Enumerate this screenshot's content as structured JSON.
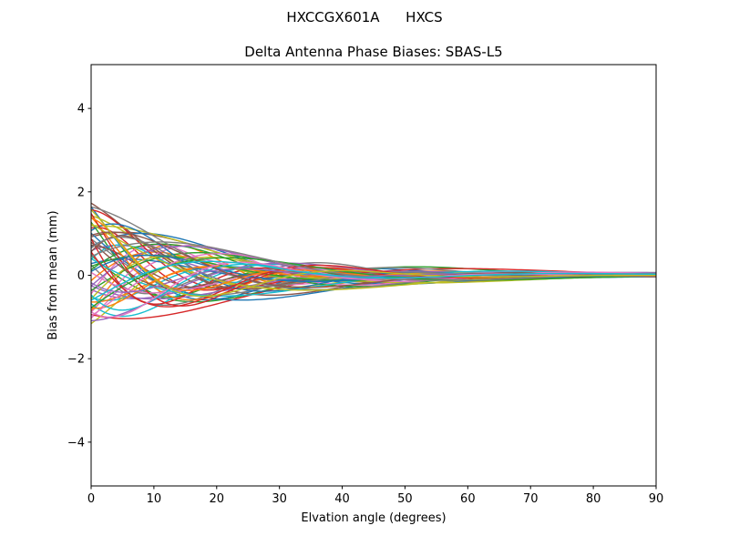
{
  "chart_data": {
    "type": "line",
    "suptitle": "HXCCGX601A      HXCS",
    "title": "Delta Antenna Phase Biases: SBAS-L5",
    "xlabel": "Elvation angle (degrees)",
    "ylabel": "Bias from mean (mm)",
    "xlim": [
      0,
      90
    ],
    "ylim": [
      -5.05,
      5.05
    ],
    "x_ticks": [
      0,
      10,
      20,
      30,
      40,
      50,
      60,
      70,
      80,
      90
    ],
    "y_ticks": [
      {
        "value": 4,
        "label": "4"
      },
      {
        "value": 2,
        "label": "2"
      },
      {
        "value": 0,
        "label": "0"
      },
      {
        "value": -2,
        "label": "−2"
      },
      {
        "value": -4,
        "label": "−4"
      }
    ],
    "grid": false,
    "legend": "none",
    "n_series": 60,
    "start_spread_mm": [
      -1.15,
      1.75
    ],
    "end_spread_mm": [
      -0.05,
      0.05
    ],
    "palette": [
      "#1f77b4",
      "#ff7f0e",
      "#2ca02c",
      "#d62728",
      "#9467bd",
      "#8c564b",
      "#e377c2",
      "#7f7f7f",
      "#bcbd22",
      "#17becf"
    ],
    "series_model": "y(e) = c + exp(-e/tau) * (a*cos(k*e) + b*sin(k*e)), e = elevation in degrees 0..90; color = palette[index % 10]",
    "series_params_format": [
      "a_mm_at_0deg",
      "b_mm",
      "k_rad_per_deg",
      "tau_deg",
      "c_mm_asymptote"
    ],
    "series": [
      [
        1.62,
        -0.9,
        0.12,
        18,
        0.02
      ],
      [
        -0.85,
        1.1,
        0.15,
        22,
        -0.01
      ],
      [
        0.45,
        -1.3,
        0.09,
        26,
        0.03
      ],
      [
        1.15,
        0.7,
        0.18,
        14,
        -0.02
      ],
      [
        -0.35,
        -0.8,
        0.11,
        20,
        0.01
      ],
      [
        0.95,
        1.2,
        0.07,
        24,
        -0.03
      ],
      [
        -1.05,
        0.5,
        0.16,
        16,
        0.02
      ],
      [
        0.25,
        -1.1,
        0.13,
        28,
        0.0
      ],
      [
        1.45,
        0.3,
        0.1,
        19,
        -0.02
      ],
      [
        -0.55,
        -0.6,
        0.17,
        15,
        0.03
      ],
      [
        0.7,
        1.4,
        0.08,
        25,
        -0.01
      ],
      [
        -0.15,
        0.9,
        0.14,
        21,
        0.02
      ],
      [
        1.3,
        -0.5,
        0.19,
        13,
        -0.03
      ],
      [
        -0.95,
        -1.2,
        0.06,
        27,
        0.01
      ],
      [
        0.55,
        0.8,
        0.12,
        17,
        0.04
      ],
      [
        1.75,
        -0.2,
        0.09,
        23,
        -0.02
      ],
      [
        -0.45,
        1.3,
        0.15,
        18,
        0.0
      ],
      [
        0.85,
        -0.7,
        0.11,
        26,
        0.02
      ],
      [
        -1.15,
        0.4,
        0.13,
        20,
        -0.01
      ],
      [
        0.35,
        1.0,
        0.18,
        14,
        0.03
      ],
      [
        1.05,
        -1.4,
        0.07,
        24,
        -0.04
      ],
      [
        -0.65,
        -0.3,
        0.16,
        16,
        0.01
      ],
      [
        0.15,
        1.2,
        0.1,
        28,
        -0.02
      ],
      [
        1.55,
        0.6,
        0.14,
        15,
        0.02
      ],
      [
        -0.25,
        -1.0,
        0.08,
        22,
        0.0
      ],
      [
        0.75,
        0.2,
        0.17,
        19,
        -0.03
      ],
      [
        -0.9,
        1.1,
        0.12,
        25,
        0.01
      ],
      [
        0.5,
        -0.9,
        0.19,
        13,
        0.04
      ],
      [
        1.2,
        0.8,
        0.06,
        27,
        -0.01
      ],
      [
        -0.7,
        -1.3,
        0.13,
        17,
        0.02
      ],
      [
        0.3,
        0.5,
        0.11,
        21,
        -0.02
      ],
      [
        1.4,
        -0.6,
        0.15,
        18,
        0.0
      ],
      [
        -0.4,
        1.0,
        0.09,
        26,
        0.03
      ],
      [
        0.9,
        -1.2,
        0.18,
        14,
        -0.02
      ],
      [
        -1.1,
        -0.4,
        0.1,
        23,
        0.01
      ],
      [
        0.6,
        1.3,
        0.16,
        16,
        -0.04
      ],
      [
        0.05,
        -0.8,
        0.12,
        20,
        0.02
      ],
      [
        1.65,
        0.4,
        0.08,
        24,
        -0.01
      ],
      [
        -0.6,
        0.9,
        0.14,
        15,
        0.03
      ],
      [
        0.4,
        -1.1,
        0.07,
        28,
        0.0
      ],
      [
        1.1,
        1.2,
        0.13,
        19,
        -0.03
      ],
      [
        -0.8,
        -0.5,
        0.17,
        13,
        0.02
      ],
      [
        0.2,
        0.7,
        0.1,
        25,
        0.01
      ],
      [
        1.5,
        -1.0,
        0.15,
        17,
        -0.02
      ],
      [
        -0.3,
        1.4,
        0.09,
        22,
        0.04
      ],
      [
        0.8,
        -0.3,
        0.18,
        14,
        -0.01
      ],
      [
        -1.0,
        0.6,
        0.11,
        26,
        0.02
      ],
      [
        0.65,
        1.1,
        0.14,
        18,
        0.0
      ],
      [
        1.25,
        -0.7,
        0.06,
        27,
        -0.02
      ],
      [
        -0.5,
        -1.2,
        0.16,
        15,
        0.03
      ],
      [
        0.1,
        0.8,
        0.12,
        21,
        -0.01
      ],
      [
        1.35,
        0.3,
        0.19,
        13,
        0.02
      ],
      [
        -0.75,
        1.0,
        0.08,
        24,
        -0.03
      ],
      [
        0.55,
        -1.4,
        0.13,
        20,
        0.01
      ],
      [
        -0.2,
        -0.6,
        0.17,
        16,
        0.02
      ],
      [
        0.98,
        0.9,
        0.1,
        23,
        -0.02
      ],
      [
        -0.88,
        -0.9,
        0.15,
        18,
        0.0
      ],
      [
        0.42,
        1.2,
        0.07,
        28,
        0.03
      ],
      [
        1.58,
        -0.4,
        0.14,
        16,
        -0.01
      ],
      [
        -0.62,
        0.5,
        0.11,
        22,
        0.02
      ]
    ]
  }
}
